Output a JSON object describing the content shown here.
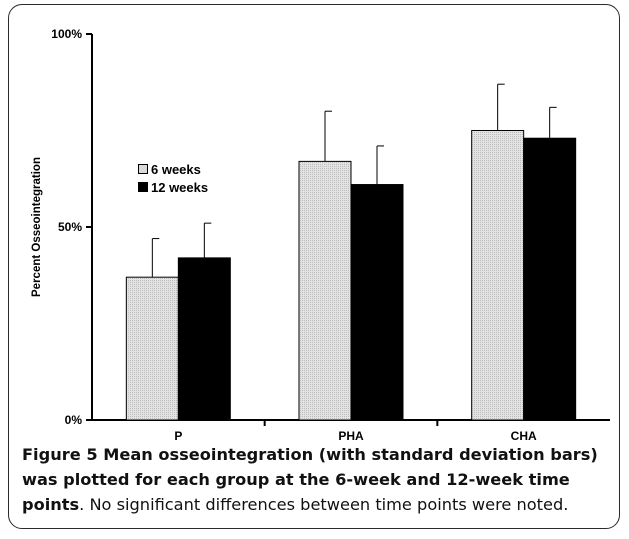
{
  "chart_data": {
    "type": "bar",
    "categories": [
      "P",
      "PHA",
      "CHA"
    ],
    "series": [
      {
        "name": "6 weeks",
        "values": [
          37,
          67,
          75
        ],
        "errors": [
          10,
          13,
          12
        ],
        "color": "#d9d9d9"
      },
      {
        "name": "12 weeks",
        "values": [
          42,
          61,
          73
        ],
        "errors": [
          9,
          10,
          8
        ],
        "color": "#000000"
      }
    ],
    "ylabel": "Percent Osseointegration",
    "ylim": [
      0,
      100
    ],
    "yticks": [
      "0%",
      "50%",
      "100%"
    ],
    "ytick_values": [
      0,
      50,
      100
    ],
    "grid": false,
    "legend_position": "top-left"
  },
  "caption": {
    "label": "Figure 5",
    "bold_text": " Mean osseointegration (with standard deviation bars) was plotted for each group at the 6-week and 12-week time points",
    "plain_text": ". No significant differences between time points were noted."
  }
}
